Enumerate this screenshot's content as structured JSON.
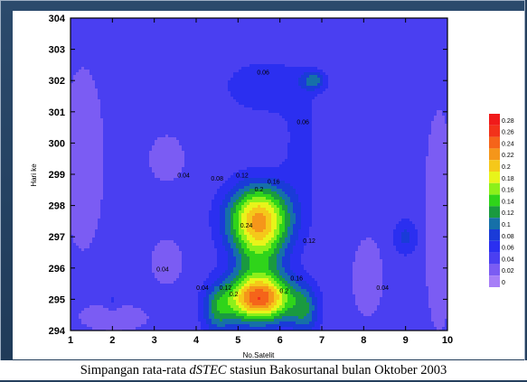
{
  "caption": {
    "prefix": "Simpangan rata-rata ",
    "italic": "dSTEC",
    "suffix": " stasiun Bakosurtanal bulan Oktober 2003"
  },
  "chart_data": {
    "type": "heatmap",
    "subtype": "filled-contour",
    "xlabel": "No.Satelit",
    "ylabel": "Hari ke",
    "xlim": [
      1,
      10
    ],
    "ylim": [
      294,
      304
    ],
    "x_ticks": [
      1,
      2,
      3,
      4,
      5,
      6,
      7,
      8,
      9,
      10
    ],
    "y_ticks": [
      294,
      295,
      296,
      297,
      298,
      299,
      300,
      301,
      302,
      303,
      304
    ],
    "color_levels": [
      0,
      0.02,
      0.04,
      0.06,
      0.08,
      0.1,
      0.12,
      0.14,
      0.16,
      0.18,
      0.2,
      0.22,
      0.24,
      0.26,
      0.28
    ],
    "legend_labels": [
      "0",
      "0.02",
      "0.04",
      "0.06",
      "0.08",
      "0.1",
      "0.12",
      "0.14",
      "0.16",
      "0.18",
      "0.2",
      "0.22",
      "0.24",
      "0.26",
      "0.28"
    ],
    "legend_colors": [
      "#a77ff7",
      "#7b5cf3",
      "#4a3ff1",
      "#2b2ff0",
      "#1a3bd8",
      "#1670a8",
      "#1a9a40",
      "#2fd41a",
      "#8cf01a",
      "#e8f41a",
      "#f5c81a",
      "#f5961a",
      "#f5641a",
      "#f2321a",
      "#f01a1a"
    ],
    "contour_labels": [
      {
        "text": "0.06",
        "x": 5.6,
        "y": 302.2
      },
      {
        "text": "0.06",
        "x": 6.55,
        "y": 300.6
      },
      {
        "text": "0.04",
        "x": 3.7,
        "y": 298.9
      },
      {
        "text": "0.12",
        "x": 5.1,
        "y": 298.9
      },
      {
        "text": "0.08",
        "x": 4.5,
        "y": 298.8
      },
      {
        "text": "0.16",
        "x": 5.85,
        "y": 298.7
      },
      {
        "text": "0.2",
        "x": 5.5,
        "y": 298.45
      },
      {
        "text": "0.24",
        "x": 5.2,
        "y": 297.3
      },
      {
        "text": "0.12",
        "x": 6.7,
        "y": 296.8
      },
      {
        "text": "0.04",
        "x": 3.2,
        "y": 295.9
      },
      {
        "text": "0.04",
        "x": 4.15,
        "y": 295.3
      },
      {
        "text": "0.12",
        "x": 4.7,
        "y": 295.3
      },
      {
        "text": "0.2",
        "x": 4.9,
        "y": 295.1
      },
      {
        "text": "0.2",
        "x": 6.1,
        "y": 295.2
      },
      {
        "text": "0.16",
        "x": 6.4,
        "y": 295.6
      },
      {
        "text": "0.04",
        "x": 8.45,
        "y": 295.3
      }
    ],
    "grid": false,
    "legend_position": "right"
  }
}
